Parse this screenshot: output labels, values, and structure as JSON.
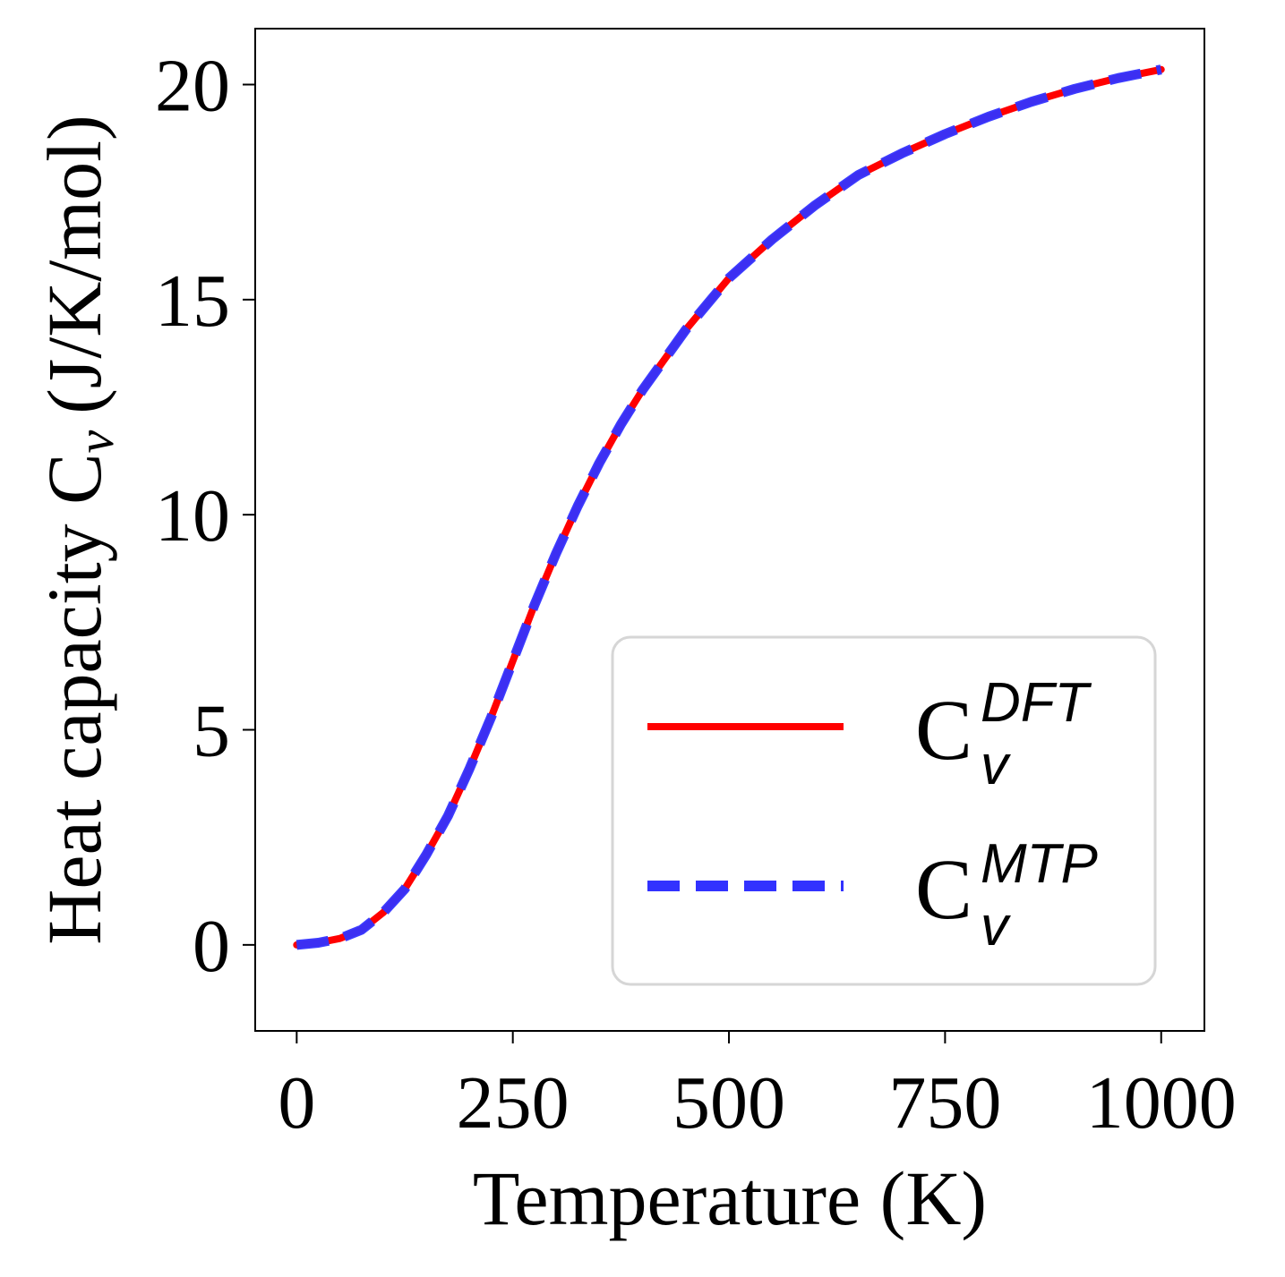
{
  "chart_data": {
    "type": "line",
    "xlabel": "Temperature (K)",
    "ylabel": "Heat capacity C",
    "ylabel_subscript": "v",
    "ylabel_units": "(J/K/mol)",
    "xlim": [
      -48,
      1050
    ],
    "ylim": [
      -2.0,
      21.3
    ],
    "xticks": [
      0,
      250,
      500,
      750,
      1000
    ],
    "yticks": [
      0,
      5,
      10,
      15,
      20
    ],
    "grid": false,
    "legend_position": "lower-right",
    "series": [
      {
        "name": "C_v^DFT",
        "base": "C",
        "sub": "v",
        "sup": "DFT",
        "style": "solid",
        "color": "#ff0000",
        "x": [
          0,
          25,
          50,
          75,
          100,
          125,
          150,
          175,
          200,
          225,
          250,
          275,
          300,
          325,
          350,
          375,
          400,
          450,
          500,
          550,
          600,
          650,
          700,
          750,
          800,
          850,
          900,
          950,
          1000
        ],
        "y": [
          0.0,
          0.05,
          0.15,
          0.35,
          0.75,
          1.3,
          2.1,
          3.0,
          4.1,
          5.3,
          6.6,
          7.9,
          9.1,
          10.2,
          11.2,
          12.1,
          12.9,
          14.3,
          15.5,
          16.4,
          17.2,
          17.9,
          18.4,
          18.85,
          19.25,
          19.6,
          19.9,
          20.15,
          20.35
        ]
      },
      {
        "name": "C_v^MTP",
        "base": "C",
        "sub": "v",
        "sup": "MTP",
        "style": "dashed",
        "color": "#3232ff",
        "x": [
          0,
          25,
          50,
          75,
          100,
          125,
          150,
          175,
          200,
          225,
          250,
          275,
          300,
          325,
          350,
          375,
          400,
          450,
          500,
          550,
          600,
          650,
          700,
          750,
          800,
          850,
          900,
          950,
          1000
        ],
        "y": [
          0.0,
          0.05,
          0.15,
          0.35,
          0.75,
          1.3,
          2.1,
          3.0,
          4.1,
          5.3,
          6.6,
          7.9,
          9.1,
          10.2,
          11.2,
          12.1,
          12.9,
          14.3,
          15.5,
          16.4,
          17.2,
          17.9,
          18.4,
          18.85,
          19.25,
          19.6,
          19.9,
          20.15,
          20.35
        ]
      }
    ]
  }
}
